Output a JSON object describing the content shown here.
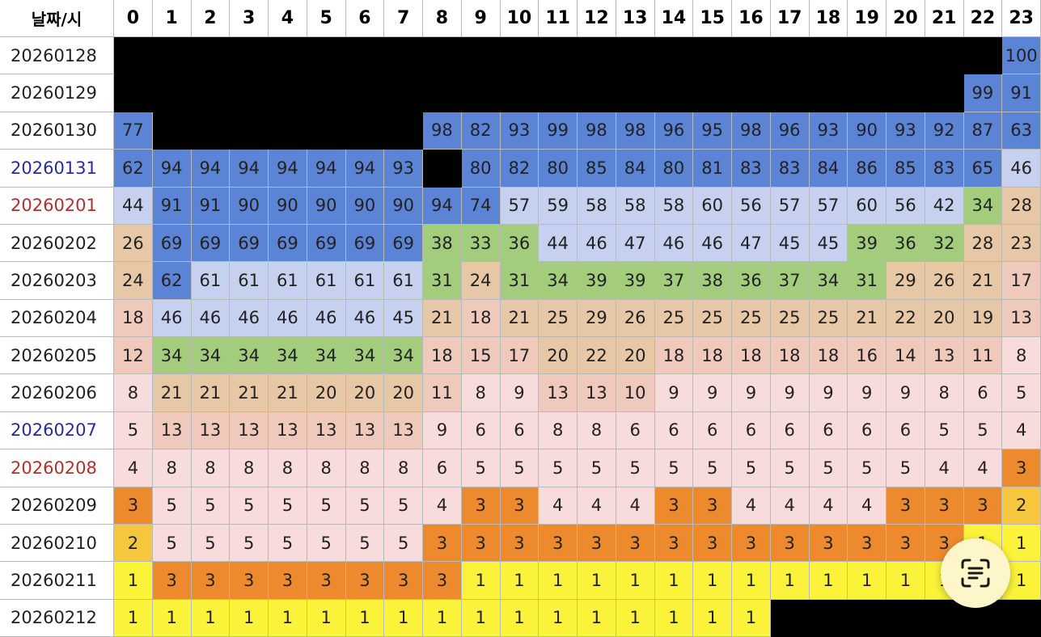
{
  "chart_data": {
    "type": "table",
    "corner_label": "날짜/시",
    "hours": [
      "0",
      "1",
      "2",
      "3",
      "4",
      "5",
      "6",
      "7",
      "8",
      "9",
      "10",
      "11",
      "12",
      "13",
      "14",
      "15",
      "16",
      "17",
      "18",
      "19",
      "20",
      "21",
      "22",
      "23"
    ],
    "rows": [
      {
        "date": "20260128",
        "values": [
          null,
          null,
          null,
          null,
          null,
          null,
          null,
          null,
          null,
          null,
          null,
          null,
          null,
          null,
          null,
          null,
          null,
          null,
          null,
          null,
          null,
          null,
          null,
          100
        ]
      },
      {
        "date": "20260129",
        "values": [
          null,
          null,
          null,
          null,
          null,
          null,
          null,
          null,
          null,
          null,
          null,
          null,
          null,
          null,
          null,
          null,
          null,
          null,
          null,
          null,
          null,
          null,
          99,
          91
        ]
      },
      {
        "date": "20260130",
        "values": [
          77,
          null,
          null,
          null,
          null,
          null,
          null,
          null,
          98,
          82,
          93,
          99,
          98,
          98,
          96,
          95,
          98,
          96,
          93,
          90,
          93,
          92,
          87,
          63
        ]
      },
      {
        "date": "20260131",
        "values": [
          62,
          94,
          94,
          94,
          94,
          94,
          94,
          93,
          null,
          80,
          82,
          80,
          85,
          84,
          80,
          81,
          83,
          83,
          84,
          86,
          85,
          83,
          65,
          46
        ]
      },
      {
        "date": "20260201",
        "values": [
          44,
          91,
          91,
          90,
          90,
          90,
          90,
          90,
          94,
          74,
          57,
          59,
          58,
          58,
          58,
          60,
          56,
          57,
          57,
          60,
          56,
          42,
          34,
          28
        ]
      },
      {
        "date": "20260202",
        "values": [
          26,
          69,
          69,
          69,
          69,
          69,
          69,
          69,
          38,
          33,
          36,
          44,
          46,
          47,
          46,
          46,
          47,
          45,
          45,
          39,
          36,
          32,
          28,
          23
        ]
      },
      {
        "date": "20260203",
        "values": [
          24,
          62,
          61,
          61,
          61,
          61,
          61,
          61,
          31,
          24,
          31,
          34,
          39,
          39,
          37,
          38,
          36,
          37,
          34,
          31,
          29,
          26,
          21,
          17
        ]
      },
      {
        "date": "20260204",
        "values": [
          18,
          46,
          46,
          46,
          46,
          46,
          46,
          45,
          21,
          18,
          21,
          25,
          29,
          26,
          25,
          25,
          25,
          25,
          25,
          21,
          22,
          20,
          19,
          13
        ]
      },
      {
        "date": "20260205",
        "values": [
          12,
          34,
          34,
          34,
          34,
          34,
          34,
          34,
          18,
          15,
          17,
          20,
          22,
          20,
          18,
          18,
          18,
          18,
          18,
          16,
          14,
          13,
          11,
          8
        ]
      },
      {
        "date": "20260206",
        "values": [
          8,
          21,
          21,
          21,
          21,
          20,
          20,
          20,
          11,
          8,
          9,
          13,
          13,
          10,
          9,
          9,
          9,
          9,
          9,
          9,
          9,
          8,
          6,
          5
        ]
      },
      {
        "date": "20260207",
        "values": [
          5,
          13,
          13,
          13,
          13,
          13,
          13,
          13,
          9,
          6,
          6,
          8,
          8,
          6,
          6,
          6,
          6,
          6,
          6,
          6,
          6,
          5,
          5,
          4
        ]
      },
      {
        "date": "20260208",
        "values": [
          4,
          8,
          8,
          8,
          8,
          8,
          8,
          8,
          6,
          5,
          5,
          5,
          5,
          5,
          5,
          5,
          5,
          5,
          5,
          5,
          5,
          4,
          4,
          3
        ]
      },
      {
        "date": "20260209",
        "values": [
          3,
          5,
          5,
          5,
          5,
          5,
          5,
          5,
          4,
          3,
          3,
          4,
          4,
          4,
          3,
          3,
          4,
          4,
          4,
          4,
          3,
          3,
          3,
          2
        ]
      },
      {
        "date": "20260210",
        "values": [
          2,
          5,
          5,
          5,
          5,
          5,
          5,
          5,
          3,
          3,
          3,
          3,
          3,
          3,
          3,
          3,
          3,
          3,
          3,
          3,
          3,
          3,
          1,
          1
        ]
      },
      {
        "date": "20260211",
        "values": [
          1,
          3,
          3,
          3,
          3,
          3,
          3,
          3,
          3,
          1,
          1,
          1,
          1,
          1,
          1,
          1,
          1,
          1,
          1,
          1,
          1,
          1,
          1,
          1
        ]
      },
      {
        "date": "20260212",
        "values": [
          1,
          1,
          1,
          1,
          1,
          1,
          1,
          1,
          1,
          1,
          1,
          1,
          1,
          1,
          1,
          1,
          1,
          null,
          null,
          null,
          null,
          null,
          null,
          null
        ]
      }
    ],
    "date_colors": {
      "20260131": "#2a2aa0",
      "20260201": "#b03030",
      "20260207": "#2a2aa0",
      "20260208": "#b03030"
    },
    "legend_thresholds": [
      {
        "min": 62,
        "color": "#5b84d6"
      },
      {
        "min": 40,
        "color": "#c6d1ef"
      },
      {
        "min": 30,
        "color": "#a3cd7c"
      },
      {
        "min": 19,
        "color": "#e7c8a6"
      },
      {
        "min": 10,
        "color": "#f0c9bd"
      },
      {
        "min": 4,
        "color": "#f8dcdb"
      },
      {
        "min": 3,
        "color": "#ee8a2e"
      },
      {
        "min": 2,
        "color": "#f6c63e"
      },
      {
        "min": 0,
        "color": "#fbf33a"
      }
    ],
    "missing_color": "#000000",
    "header_color": "#ffffff"
  },
  "overlay": {
    "icon": "text-scan-icon"
  }
}
